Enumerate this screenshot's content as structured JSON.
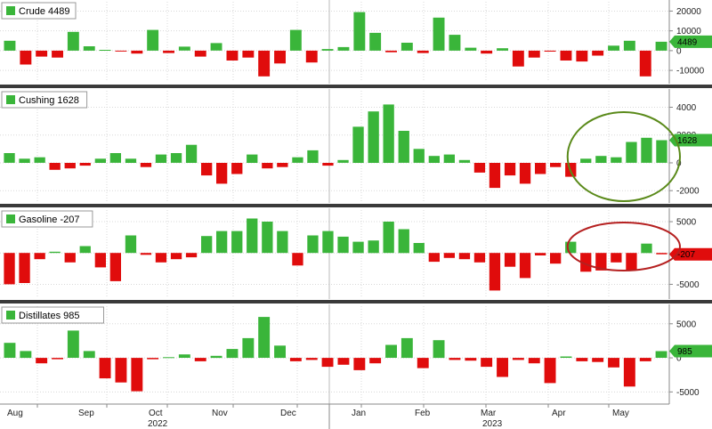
{
  "colors": {
    "positive": "#3ab53a",
    "negative": "#e00c0c",
    "separator": "#3a3a3a",
    "highlight_green": "#5a8a1a",
    "highlight_red": "#b52020"
  },
  "chart_data": [
    {
      "type": "bar",
      "title": "Crude 4489",
      "last_value_label": "4489",
      "ylim": [
        -14000,
        22000
      ],
      "yticks": [
        20000,
        10000,
        0,
        -10000
      ],
      "values": [
        5000,
        -7000,
        -3000,
        -3500,
        9500,
        2200,
        400,
        -300,
        -1500,
        10500,
        -1200,
        2000,
        -3000,
        3800,
        -5000,
        -3500,
        -13000,
        -6500,
        10500,
        -6000,
        800,
        1800,
        19500,
        9000,
        -800,
        4000,
        -1200,
        16700,
        8000,
        1500,
        -1500,
        1200,
        -8000,
        -3500,
        -500,
        -5000,
        -5500,
        -2500,
        2500,
        5000,
        -13000,
        4489
      ],
      "highlight": null
    },
    {
      "type": "bar",
      "title": "Cushing 1628",
      "last_value_label": "1628",
      "ylim": [
        -2500,
        4800
      ],
      "yticks": [
        4000,
        2000,
        0,
        -2000
      ],
      "values": [
        700,
        300,
        400,
        -500,
        -400,
        -200,
        300,
        700,
        300,
        -300,
        600,
        700,
        1300,
        -900,
        -1500,
        -800,
        600,
        -400,
        -300,
        400,
        900,
        -200,
        200,
        2600,
        3700,
        4200,
        2300,
        1000,
        500,
        600,
        200,
        -700,
        -1800,
        -900,
        -1500,
        -800,
        -300,
        -1000,
        300,
        500,
        400,
        1500,
        1800,
        1628
      ],
      "highlight": {
        "from": 38,
        "to": 43,
        "color": "highlight_green"
      }
    },
    {
      "type": "bar",
      "title": "Gasoline -207",
      "last_value_label": "-207",
      "ylim": [
        -6500,
        6000
      ],
      "yticks": [
        5000,
        0,
        -5000
      ],
      "values": [
        -5000,
        -4800,
        -1000,
        200,
        -1500,
        1100,
        -2300,
        -4500,
        2800,
        -300,
        -1500,
        -1000,
        -700,
        2700,
        3500,
        3500,
        5500,
        5000,
        3500,
        -2000,
        2800,
        3500,
        2600,
        1800,
        2000,
        5000,
        3800,
        1600,
        -1400,
        -800,
        -1000,
        -1500,
        -6000,
        -2200,
        -4000,
        -400,
        -1700,
        1800,
        -3000,
        -2800,
        -1500,
        -2700,
        1500,
        -207
      ],
      "highlight": {
        "from": 38,
        "to": 43,
        "color": "highlight_red"
      }
    },
    {
      "type": "bar",
      "title": "Distillates 985",
      "last_value_label": "985",
      "ylim": [
        -6000,
        6800
      ],
      "yticks": [
        5000,
        0,
        -5000
      ],
      "values": [
        2200,
        1000,
        -800,
        -200,
        4000,
        1000,
        -3000,
        -3600,
        -4900,
        -200,
        100,
        500,
        -500,
        300,
        1300,
        2900,
        6000,
        1800,
        -500,
        -300,
        -1300,
        -1000,
        -1800,
        -800,
        1900,
        2900,
        -1500,
        2600,
        -300,
        -400,
        -1300,
        -2800,
        -300,
        -800,
        -3700,
        200,
        -500,
        -600,
        -1400,
        -4200,
        -500,
        985
      ],
      "highlight": null
    }
  ],
  "x_axis": {
    "months": [
      "Aug",
      "Sep",
      "Oct",
      "Nov",
      "Dec",
      "Jan",
      "Feb",
      "Mar",
      "Apr",
      "May"
    ],
    "years": [
      "2022",
      "2023"
    ]
  }
}
